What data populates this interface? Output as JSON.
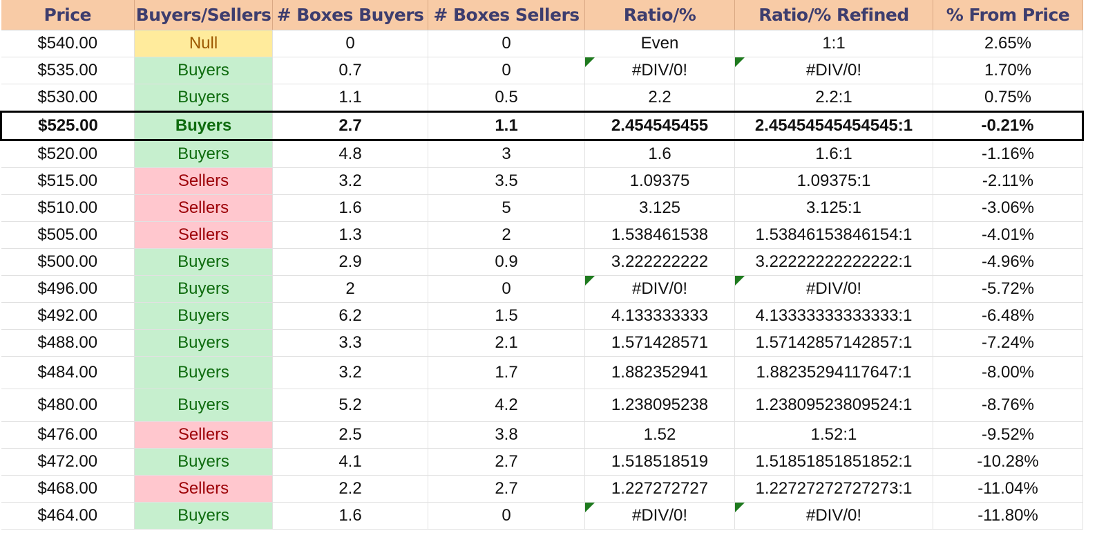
{
  "columns": [
    "Price",
    "Buyers/Sellers",
    "# Boxes Buyers",
    "# Boxes Sellers",
    "Ratio/%",
    "Ratio/% Refined",
    "% From Price"
  ],
  "colors": {
    "header_bg": "#f8cba6",
    "header_text": "#3d3d6e",
    "buyers_bg": "#c6efce",
    "buyers_text": "#0e6b0e",
    "sellers_bg": "#ffc7ce",
    "sellers_text": "#9c0006",
    "null_bg": "#ffeb9c",
    "null_text": "#9c5700",
    "error_flag": "#1e7a1e"
  },
  "highlight_row_index": 3,
  "rows": [
    {
      "price": "$540.00",
      "side": "Null",
      "buyers": "0",
      "sellers": "0",
      "ratio": "Even",
      "refined": "1:1",
      "from_price": "2.65%",
      "ratio_error": false,
      "refined_error": false
    },
    {
      "price": "$535.00",
      "side": "Buyers",
      "buyers": "0.7",
      "sellers": "0",
      "ratio": "#DIV/0!",
      "refined": "#DIV/0!",
      "from_price": "1.70%",
      "ratio_error": true,
      "refined_error": true
    },
    {
      "price": "$530.00",
      "side": "Buyers",
      "buyers": "1.1",
      "sellers": "0.5",
      "ratio": "2.2",
      "refined": "2.2:1",
      "from_price": "0.75%",
      "ratio_error": false,
      "refined_error": false
    },
    {
      "price": "$525.00",
      "side": "Buyers",
      "buyers": "2.7",
      "sellers": "1.1",
      "ratio": "2.454545455",
      "refined": "2.45454545454545:1",
      "from_price": "-0.21%",
      "ratio_error": false,
      "refined_error": false
    },
    {
      "price": "$520.00",
      "side": "Buyers",
      "buyers": "4.8",
      "sellers": "3",
      "ratio": "1.6",
      "refined": "1.6:1",
      "from_price": "-1.16%",
      "ratio_error": false,
      "refined_error": false
    },
    {
      "price": "$515.00",
      "side": "Sellers",
      "buyers": "3.2",
      "sellers": "3.5",
      "ratio": "1.09375",
      "refined": "1.09375:1",
      "from_price": "-2.11%",
      "ratio_error": false,
      "refined_error": false
    },
    {
      "price": "$510.00",
      "side": "Sellers",
      "buyers": "1.6",
      "sellers": "5",
      "ratio": "3.125",
      "refined": "3.125:1",
      "from_price": "-3.06%",
      "ratio_error": false,
      "refined_error": false
    },
    {
      "price": "$505.00",
      "side": "Sellers",
      "buyers": "1.3",
      "sellers": "2",
      "ratio": "1.538461538",
      "refined": "1.53846153846154:1",
      "from_price": "-4.01%",
      "ratio_error": false,
      "refined_error": false
    },
    {
      "price": "$500.00",
      "side": "Buyers",
      "buyers": "2.9",
      "sellers": "0.9",
      "ratio": "3.222222222",
      "refined": "3.22222222222222:1",
      "from_price": "-4.96%",
      "ratio_error": false,
      "refined_error": false
    },
    {
      "price": "$496.00",
      "side": "Buyers",
      "buyers": "2",
      "sellers": "0",
      "ratio": "#DIV/0!",
      "refined": "#DIV/0!",
      "from_price": "-5.72%",
      "ratio_error": true,
      "refined_error": true
    },
    {
      "price": "$492.00",
      "side": "Buyers",
      "buyers": "6.2",
      "sellers": "1.5",
      "ratio": "4.133333333",
      "refined": "4.13333333333333:1",
      "from_price": "-6.48%",
      "ratio_error": false,
      "refined_error": false
    },
    {
      "price": "$488.00",
      "side": "Buyers",
      "buyers": "3.3",
      "sellers": "2.1",
      "ratio": "1.571428571",
      "refined": "1.57142857142857:1",
      "from_price": "-7.24%",
      "ratio_error": false,
      "refined_error": false
    },
    {
      "price": "$484.00",
      "side": "Buyers",
      "buyers": "3.2",
      "sellers": "1.7",
      "ratio": "1.882352941",
      "refined": "1.88235294117647:1",
      "from_price": "-8.00%",
      "ratio_error": false,
      "refined_error": false,
      "tall": true
    },
    {
      "price": "$480.00",
      "side": "Buyers",
      "buyers": "5.2",
      "sellers": "4.2",
      "ratio": "1.238095238",
      "refined": "1.23809523809524:1",
      "from_price": "-8.76%",
      "ratio_error": false,
      "refined_error": false,
      "tall": true
    },
    {
      "price": "$476.00",
      "side": "Sellers",
      "buyers": "2.5",
      "sellers": "3.8",
      "ratio": "1.52",
      "refined": "1.52:1",
      "from_price": "-9.52%",
      "ratio_error": false,
      "refined_error": false
    },
    {
      "price": "$472.00",
      "side": "Buyers",
      "buyers": "4.1",
      "sellers": "2.7",
      "ratio": "1.518518519",
      "refined": "1.51851851851852:1",
      "from_price": "-10.28%",
      "ratio_error": false,
      "refined_error": false
    },
    {
      "price": "$468.00",
      "side": "Sellers",
      "buyers": "2.2",
      "sellers": "2.7",
      "ratio": "1.227272727",
      "refined": "1.22727272727273:1",
      "from_price": "-11.04%",
      "ratio_error": false,
      "refined_error": false
    },
    {
      "price": "$464.00",
      "side": "Buyers",
      "buyers": "1.6",
      "sellers": "0",
      "ratio": "#DIV/0!",
      "refined": "#DIV/0!",
      "from_price": "-11.80%",
      "ratio_error": true,
      "refined_error": true
    }
  ]
}
